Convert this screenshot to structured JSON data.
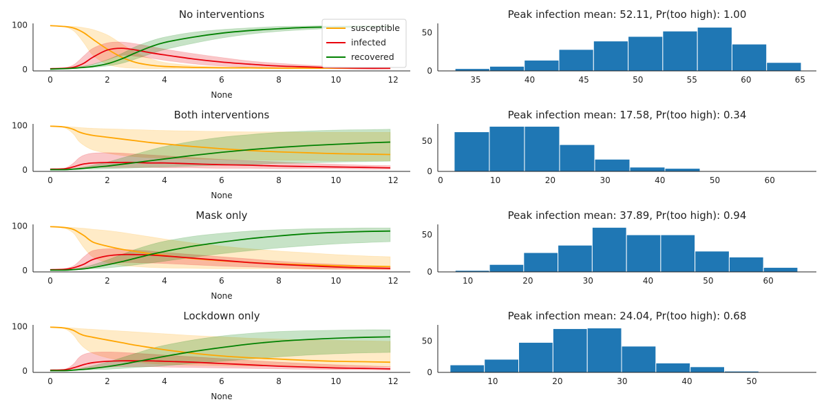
{
  "chart_data": [
    {
      "id": "none-ts",
      "type": "line",
      "title": "No interventions",
      "xlabel": "None",
      "ylabel": "",
      "xlim": [
        -0.6,
        12.6
      ],
      "ylim": [
        -3,
        104
      ],
      "xticks": [
        0,
        2,
        4,
        6,
        8,
        10,
        12
      ],
      "yticks": [
        0,
        100
      ],
      "legend": "top-right",
      "x": [
        0,
        0.5,
        0.8,
        1,
        1.2,
        1.5,
        2,
        2.5,
        3,
        3.5,
        4,
        5,
        6,
        7,
        8,
        9,
        10,
        11,
        11.9
      ],
      "series": [
        {
          "name": "susceptible",
          "color": "#ffa500",
          "values": [
            99,
            97,
            94,
            89,
            82,
            68,
            46,
            28,
            16,
            10,
            7,
            5,
            4,
            4,
            3,
            3,
            3,
            3,
            3
          ],
          "lower": [
            99,
            96,
            88,
            75,
            58,
            32,
            12,
            5,
            3,
            2,
            2,
            2,
            2,
            2,
            2,
            2,
            2,
            2,
            2
          ],
          "upper": [
            99,
            98,
            97,
            96,
            94,
            90,
            78,
            58,
            38,
            25,
            16,
            9,
            6,
            5,
            5,
            5,
            5,
            5,
            5
          ]
        },
        {
          "name": "infected",
          "color": "#e8000b",
          "values": [
            2,
            3,
            5,
            9,
            15,
            28,
            44,
            48,
            44,
            38,
            33,
            24,
            17,
            12,
            8,
            6,
            4,
            3,
            3
          ],
          "lower": [
            2,
            2,
            3,
            4,
            7,
            12,
            22,
            32,
            30,
            26,
            21,
            13,
            8,
            5,
            3,
            2,
            2,
            1,
            1
          ],
          "upper": [
            2,
            4,
            10,
            20,
            32,
            48,
            60,
            62,
            58,
            52,
            46,
            36,
            27,
            19,
            14,
            10,
            7,
            5,
            4
          ]
        },
        {
          "name": "recovered",
          "color": "#008000",
          "values": [
            1,
            2,
            3,
            4,
            5,
            7,
            13,
            24,
            38,
            51,
            61,
            73,
            82,
            88,
            92,
            95,
            96,
            97,
            97
          ],
          "lower": [
            1,
            1,
            2,
            3,
            4,
            5,
            8,
            14,
            24,
            35,
            45,
            59,
            71,
            80,
            86,
            90,
            93,
            94,
            95
          ],
          "upper": [
            1,
            2,
            4,
            6,
            8,
            12,
            22,
            36,
            52,
            64,
            73,
            84,
            90,
            94,
            97,
            98,
            99,
            99,
            99
          ]
        }
      ]
    },
    {
      "id": "none-hist",
      "type": "bar",
      "title": "Peak infection mean: 52.11, Pr(too high): 1.00",
      "xlim": [
        31.5,
        66.5
      ],
      "ylim": [
        0,
        62
      ],
      "xticks": [
        35,
        40,
        45,
        50,
        55,
        60,
        65
      ],
      "yticks": [
        0,
        50
      ],
      "color": "#1f77b4",
      "bin_edges": [
        33.1,
        36.3,
        39.5,
        42.7,
        45.9,
        49.1,
        52.3,
        55.5,
        58.7,
        61.9,
        65.1
      ],
      "values": [
        3,
        6,
        14,
        28,
        39,
        45,
        52,
        57,
        35,
        11
      ]
    },
    {
      "id": "both-ts",
      "type": "line",
      "title": "Both interventions",
      "xlabel": "None",
      "ylabel": "",
      "xlim": [
        -0.6,
        12.6
      ],
      "ylim": [
        -3,
        104
      ],
      "xticks": [
        0,
        2,
        4,
        6,
        8,
        10,
        12
      ],
      "yticks": [
        0,
        100
      ],
      "legend": "none",
      "x": [
        0,
        0.5,
        0.8,
        1,
        1.2,
        1.5,
        2,
        2.5,
        3,
        3.5,
        4,
        5,
        6,
        7,
        8,
        9,
        10,
        11,
        11.9
      ],
      "series": [
        {
          "name": "susceptible",
          "color": "#ffa500",
          "values": [
            99,
            97,
            92,
            86,
            82,
            78,
            74,
            70,
            66,
            62,
            59,
            53,
            48,
            44,
            41,
            39,
            37,
            36,
            35
          ],
          "lower": [
            99,
            95,
            82,
            65,
            55,
            45,
            38,
            33,
            30,
            28,
            27,
            25,
            24,
            23,
            22,
            22,
            21,
            21,
            21
          ],
          "upper": [
            99,
            98,
            97,
            96,
            95,
            94,
            93,
            92,
            91,
            90,
            89,
            88,
            87,
            86,
            86,
            85,
            85,
            85,
            85
          ]
        },
        {
          "name": "infected",
          "color": "#e8000b",
          "values": [
            2,
            3,
            7,
            11,
            14,
            16,
            17,
            17,
            17,
            16,
            16,
            14,
            12,
            11,
            9,
            8,
            7,
            6,
            5
          ],
          "lower": [
            2,
            2,
            3,
            4,
            5,
            6,
            6,
            6,
            6,
            6,
            5,
            5,
            4,
            4,
            3,
            3,
            3,
            2,
            2
          ],
          "upper": [
            2,
            4,
            15,
            27,
            34,
            38,
            39,
            38,
            36,
            34,
            32,
            28,
            24,
            21,
            18,
            15,
            13,
            11,
            10
          ]
        },
        {
          "name": "recovered",
          "color": "#008000",
          "values": [
            1,
            1,
            2,
            3,
            4,
            6,
            9,
            13,
            17,
            21,
            25,
            33,
            40,
            46,
            51,
            55,
            58,
            61,
            63
          ],
          "lower": [
            1,
            1,
            1,
            1,
            2,
            2,
            3,
            4,
            5,
            6,
            7,
            9,
            11,
            13,
            15,
            16,
            18,
            19,
            20
          ],
          "upper": [
            1,
            2,
            3,
            5,
            7,
            11,
            18,
            27,
            36,
            45,
            53,
            65,
            74,
            80,
            85,
            88,
            90,
            91,
            92
          ]
        }
      ]
    },
    {
      "id": "both-hist",
      "type": "bar",
      "title": "Peak infection mean: 17.58, Pr(too high): 0.34",
      "xlim": [
        -0.5,
        68.5
      ],
      "ylim": [
        0,
        78
      ],
      "xticks": [
        0,
        10,
        20,
        30,
        40,
        50,
        60
      ],
      "yticks": [
        0,
        50
      ],
      "color": "#1f77b4",
      "bin_edges": [
        2.5,
        8.9,
        15.3,
        21.7,
        28.1,
        34.5,
        40.9,
        47.3,
        53.7,
        60.1,
        66.5
      ],
      "values": [
        65,
        74,
        74,
        44,
        20,
        7,
        5,
        0,
        0,
        0
      ]
    },
    {
      "id": "mask-ts",
      "type": "line",
      "title": "Mask only",
      "xlabel": "None",
      "ylabel": "",
      "xlim": [
        -0.6,
        12.6
      ],
      "ylim": [
        -3,
        104
      ],
      "xticks": [
        0,
        2,
        4,
        6,
        8,
        10,
        12
      ],
      "yticks": [
        0,
        100
      ],
      "legend": "none",
      "x": [
        0,
        0.5,
        0.8,
        1,
        1.2,
        1.5,
        2,
        2.5,
        3,
        3.5,
        4,
        5,
        6,
        7,
        8,
        9,
        10,
        11,
        11.9
      ],
      "series": [
        {
          "name": "susceptible",
          "color": "#ffa500",
          "values": [
            99,
            97,
            93,
            86,
            78,
            64,
            55,
            48,
            43,
            38,
            34,
            27,
            22,
            18,
            15,
            13,
            11,
            10,
            9
          ],
          "lower": [
            99,
            95,
            85,
            68,
            50,
            30,
            18,
            12,
            9,
            7,
            6,
            5,
            4,
            4,
            4,
            3,
            3,
            3,
            3
          ],
          "upper": [
            99,
            98,
            97,
            96,
            95,
            93,
            90,
            86,
            81,
            76,
            71,
            62,
            55,
            49,
            44,
            40,
            36,
            33,
            31
          ]
        },
        {
          "name": "infected",
          "color": "#e8000b",
          "values": [
            2,
            3,
            6,
            10,
            15,
            25,
            33,
            36,
            36,
            35,
            33,
            28,
            23,
            18,
            14,
            11,
            8,
            6,
            5
          ],
          "lower": [
            2,
            2,
            3,
            4,
            6,
            10,
            15,
            18,
            18,
            17,
            16,
            13,
            10,
            8,
            6,
            4,
            3,
            3,
            2
          ],
          "upper": [
            2,
            4,
            10,
            20,
            32,
            45,
            49,
            48,
            46,
            44,
            41,
            36,
            31,
            26,
            21,
            17,
            14,
            11,
            9
          ]
        },
        {
          "name": "recovered",
          "color": "#008000",
          "values": [
            1,
            1,
            2,
            3,
            4,
            7,
            13,
            20,
            28,
            36,
            43,
            55,
            64,
            72,
            78,
            83,
            86,
            88,
            89
          ],
          "lower": [
            1,
            1,
            1,
            2,
            3,
            4,
            6,
            9,
            13,
            17,
            21,
            30,
            38,
            45,
            51,
            56,
            60,
            63,
            65
          ],
          "upper": [
            1,
            2,
            3,
            5,
            8,
            13,
            24,
            36,
            48,
            58,
            66,
            77,
            84,
            89,
            92,
            94,
            95,
            96,
            96
          ]
        }
      ]
    },
    {
      "id": "mask-hist",
      "type": "bar",
      "title": "Peak infection mean: 37.89, Pr(too high): 0.94",
      "xlim": [
        5,
        68
      ],
      "ylim": [
        0,
        64
      ],
      "xticks": [
        10,
        20,
        30,
        40,
        50,
        60
      ],
      "yticks": [
        0,
        50
      ],
      "color": "#1f77b4",
      "bin_edges": [
        7.9,
        13.6,
        19.3,
        25.0,
        30.7,
        36.4,
        42.1,
        47.8,
        53.5,
        59.2,
        64.9
      ],
      "values": [
        2,
        10,
        26,
        36,
        60,
        50,
        50,
        28,
        20,
        6
      ]
    },
    {
      "id": "lockdown-ts",
      "type": "line",
      "title": "Lockdown only",
      "xlabel": "None",
      "ylabel": "",
      "xlim": [
        -0.6,
        12.6
      ],
      "ylim": [
        -3,
        104
      ],
      "xticks": [
        0,
        2,
        4,
        6,
        8,
        10,
        12
      ],
      "yticks": [
        0,
        100
      ],
      "legend": "none",
      "x": [
        0,
        0.5,
        0.8,
        1,
        1.2,
        1.5,
        2,
        2.5,
        3,
        3.5,
        4,
        5,
        6,
        7,
        8,
        9,
        10,
        11,
        11.9
      ],
      "series": [
        {
          "name": "susceptible",
          "color": "#ffa500",
          "values": [
            99,
            97,
            92,
            85,
            80,
            76,
            70,
            64,
            58,
            53,
            48,
            40,
            34,
            30,
            27,
            24,
            22,
            21,
            20
          ],
          "lower": [
            99,
            95,
            82,
            65,
            52,
            40,
            30,
            24,
            20,
            17,
            15,
            13,
            12,
            11,
            11,
            10,
            10,
            10,
            10
          ],
          "upper": [
            99,
            98,
            97,
            96,
            95,
            94,
            92,
            90,
            88,
            86,
            84,
            80,
            77,
            74,
            72,
            70,
            69,
            68,
            67
          ]
        },
        {
          "name": "infected",
          "color": "#e8000b",
          "values": [
            2,
            3,
            7,
            11,
            15,
            19,
            22,
            23,
            23,
            23,
            22,
            20,
            17,
            14,
            11,
            9,
            7,
            6,
            5
          ],
          "lower": [
            2,
            2,
            3,
            4,
            6,
            8,
            9,
            10,
            10,
            10,
            9,
            8,
            7,
            6,
            5,
            4,
            3,
            3,
            2
          ],
          "upper": [
            2,
            4,
            15,
            30,
            38,
            42,
            43,
            42,
            40,
            38,
            36,
            32,
            28,
            24,
            20,
            17,
            14,
            12,
            10
          ]
        },
        {
          "name": "recovered",
          "color": "#008000",
          "values": [
            1,
            1,
            2,
            3,
            4,
            6,
            10,
            15,
            21,
            27,
            33,
            44,
            53,
            61,
            67,
            71,
            74,
            76,
            77
          ],
          "lower": [
            1,
            1,
            1,
            2,
            2,
            3,
            4,
            6,
            8,
            10,
            12,
            17,
            22,
            27,
            32,
            36,
            39,
            41,
            42
          ],
          "upper": [
            1,
            2,
            3,
            5,
            8,
            12,
            20,
            30,
            40,
            50,
            58,
            70,
            79,
            85,
            89,
            91,
            92,
            93,
            93
          ]
        }
      ]
    },
    {
      "id": "lockdown-hist",
      "type": "bar",
      "title": "Peak infection mean: 24.04, Pr(too high): 0.68",
      "xlim": [
        1.5,
        60
      ],
      "ylim": [
        0,
        76
      ],
      "xticks": [
        10,
        20,
        30,
        40,
        50
      ],
      "yticks": [
        0,
        50
      ],
      "color": "#1f77b4",
      "bin_edges": [
        3.4,
        8.7,
        14.0,
        19.3,
        24.6,
        29.9,
        35.2,
        40.5,
        45.8,
        51.1,
        56.4
      ],
      "values": [
        12,
        21,
        48,
        70,
        71,
        42,
        15,
        9,
        2,
        0
      ]
    }
  ]
}
